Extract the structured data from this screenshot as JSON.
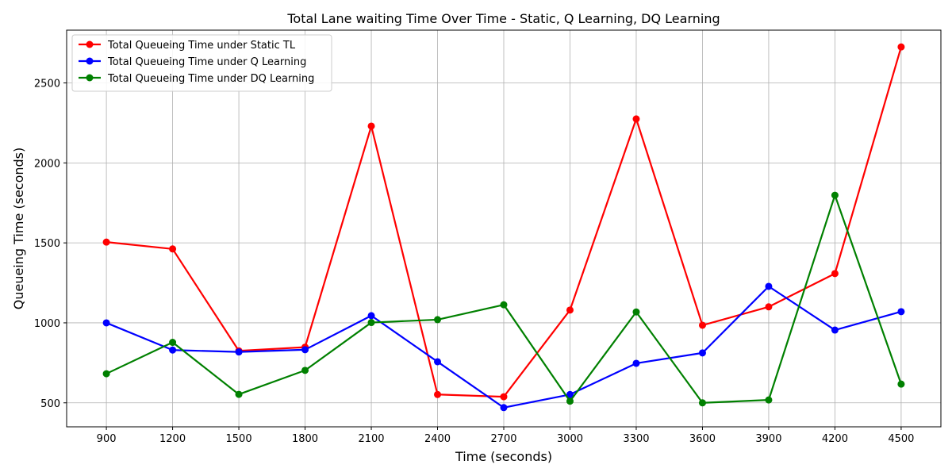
{
  "chart_data": {
    "type": "line",
    "title": "Total Lane waiting Time Over Time - Static, Q Learning, DQ Learning",
    "xlabel": "Time (seconds)",
    "ylabel": "Queueing Time (seconds)",
    "x": [
      900,
      1200,
      1500,
      1800,
      2100,
      2400,
      2700,
      3000,
      3300,
      3600,
      3900,
      4200,
      4500
    ],
    "xlim": [
      720,
      4680
    ],
    "ylim": [
      350,
      2830
    ],
    "yticks": [
      500,
      1000,
      1500,
      2000,
      2500
    ],
    "grid": true,
    "legend_position": "top-left",
    "series": [
      {
        "name": "Total Queueing Time under Static TL",
        "color": "#ff0000",
        "values": [
          1505,
          1462,
          825,
          848,
          2230,
          552,
          538,
          1080,
          2275,
          985,
          1100,
          1308,
          2725
        ]
      },
      {
        "name": "Total Queueing Time under Q Learning",
        "color": "#0000ff",
        "values": [
          1000,
          830,
          818,
          832,
          1045,
          757,
          470,
          552,
          747,
          812,
          1228,
          955,
          1070
        ]
      },
      {
        "name": "Total Queueing Time under DQ Learning",
        "color": "#008000",
        "values": [
          682,
          878,
          553,
          703,
          1002,
          1020,
          1113,
          510,
          1068,
          500,
          518,
          1798,
          617
        ]
      }
    ]
  }
}
